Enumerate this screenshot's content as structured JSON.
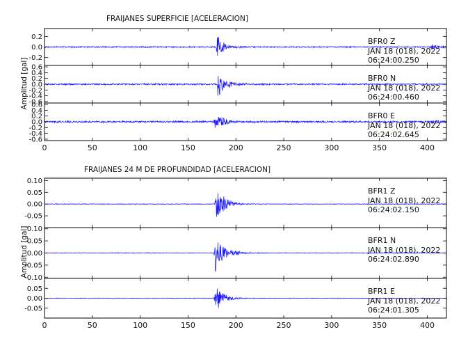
{
  "chart_data": [
    {
      "type": "line",
      "title": "FRAIJANES SUPERFICIE [ACELERACION]",
      "ylabel": "Amplitud [gal]",
      "xlim": [
        0,
        420
      ],
      "x_ticks": [
        0,
        50,
        100,
        150,
        200,
        250,
        300,
        350,
        400
      ],
      "color": "#1a1aff",
      "panels": [
        {
          "station": "BFR0",
          "component": "Z",
          "date": "JAN 18 (018), 2022",
          "time": "06:24:00.250",
          "ylim": [
            -0.35,
            0.35
          ],
          "y_ticks": [
            -0.2,
            0.0,
            0.2
          ],
          "y_tick_labels": [
            "-0.2",
            "0.0",
            "0.2"
          ],
          "noise_amplitude": 0.013,
          "events": [
            {
              "t": 180,
              "peak": 0.3,
              "decay": 6
            },
            {
              "t": 404,
              "peak": 0.05,
              "decay": 8
            }
          ]
        },
        {
          "station": "BFR0",
          "component": "N",
          "date": "JAN 18 (018), 2022",
          "time": "06:24:00.460",
          "ylim": [
            -0.65,
            0.65
          ],
          "y_ticks": [
            -0.6,
            -0.4,
            -0.2,
            0.0,
            0.2,
            0.4,
            0.6
          ],
          "y_tick_labels": [
            "-0.6",
            "-0.4",
            "-0.2",
            "0.0",
            "0.2",
            "0.4",
            "0.6"
          ],
          "noise_amplitude": 0.03,
          "events": [
            {
              "t": 181,
              "peak": 0.52,
              "decay": 7
            }
          ]
        },
        {
          "station": "BFR0",
          "component": "E",
          "date": "JAN 18 (018), 2022",
          "time": "06:24:02.645",
          "ylim": [
            -0.65,
            0.65
          ],
          "y_ticks": [
            -0.6,
            -0.4,
            -0.2,
            0.0,
            0.2,
            0.4,
            0.6
          ],
          "y_tick_labels": [
            "-0.6",
            "-0.4",
            "-0.2",
            "0.0",
            "0.2",
            "0.4",
            "0.6"
          ],
          "noise_amplitude": 0.035,
          "events": [
            {
              "t": 178,
              "peak": 0.45,
              "decay": 7
            },
            {
              "t": 405,
              "peak": 0.08,
              "decay": 8
            }
          ]
        }
      ]
    },
    {
      "type": "line",
      "title": "FRAIJANES 24 M DE PROFUNDIDAD [ACELERACION]",
      "ylabel": "Amplitud [gal]",
      "xlim": [
        0,
        420
      ],
      "x_ticks": [
        0,
        50,
        100,
        150,
        200,
        250,
        300,
        350,
        400
      ],
      "color": "#1a1aff",
      "panels": [
        {
          "station": "BFR1",
          "component": "Z",
          "date": "JAN 18 (018), 2022",
          "time": "06:24:02.150",
          "ylim": [
            -0.1,
            0.11
          ],
          "y_ticks": [
            -0.05,
            0.0,
            0.05,
            0.1
          ],
          "y_tick_labels": [
            "-0.05",
            "0.00",
            "0.05",
            "0.10"
          ],
          "noise_amplitude": 0.0015,
          "events": [
            {
              "t": 179,
              "peak": 0.1,
              "decay": 8
            }
          ]
        },
        {
          "station": "BFR1",
          "component": "N",
          "date": "JAN 18 (018), 2022",
          "time": "06:24:02.890",
          "ylim": [
            -0.105,
            0.105
          ],
          "y_ticks": [
            -0.1,
            -0.05,
            0.0,
            0.05,
            0.1
          ],
          "y_tick_labels": [
            "-0.10",
            "-0.05",
            "0.00",
            "0.05",
            "0.10"
          ],
          "noise_amplitude": 0.0015,
          "events": [
            {
              "t": 178,
              "peak": 0.1,
              "decay": 9
            }
          ]
        },
        {
          "station": "BFR1",
          "component": "E",
          "date": "JAN 18 (018), 2022",
          "time": "06:24:01.305",
          "ylim": [
            -0.1,
            0.1
          ],
          "y_ticks": [
            -0.05,
            0.0,
            0.05
          ],
          "y_tick_labels": [
            "-0.05",
            "0.00",
            "0.05"
          ],
          "noise_amplitude": 0.0015,
          "events": [
            {
              "t": 178,
              "peak": 0.08,
              "decay": 8
            }
          ]
        }
      ]
    }
  ]
}
